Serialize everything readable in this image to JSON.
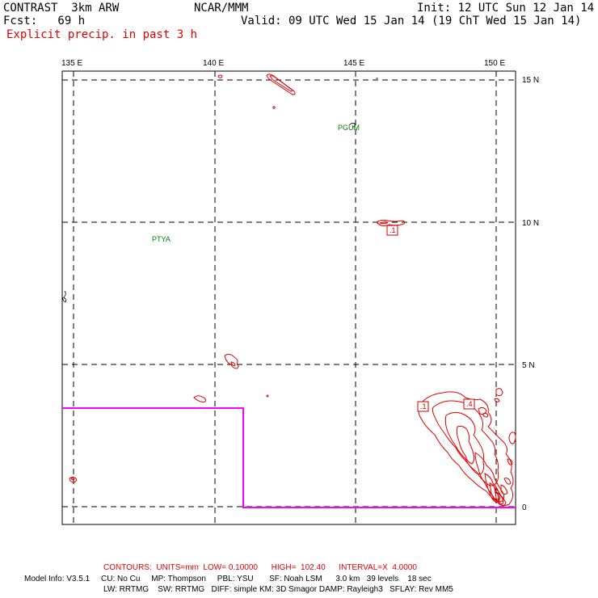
{
  "header": {
    "model": "CONTRAST  3km ARW",
    "org": "NCAR/MMM",
    "init": "Init: 12 UTC Sun 12 Jan 14",
    "fcst": "Fcst:   69 h",
    "valid": "Valid: 09 UTC Wed 15 Jan 14 (19 ChT Wed 15 Jan 14)",
    "field": "Explicit precip. in past 3 h"
  },
  "axes": {
    "lon_labels": [
      "135 E",
      "140 E",
      "145 E",
      "150 E"
    ],
    "lat_labels": [
      "15 N",
      "10 N",
      "5 N",
      "0"
    ]
  },
  "stations": [
    "PGUM",
    "PTYA"
  ],
  "contour_labels": [
    ".1",
    ".1",
    ".4"
  ],
  "footer": {
    "contours": "CONTOURS:  UNITS=mm  LOW= 0.10000      HIGH=  102.40      INTERVAL=X  4.0000",
    "model_info_1": "Model Info: V3.5.1     CU: No Cu     MP: Thompson     PBL: YSU       SF: Noah LSM      3.0 km   39 levels    18 sec",
    "model_info_2": "LW: RRTMG    SW: RRTMG   DIFF: simple KM: 3D Smagor DAMP: Rayleigh3   SFLAY: Rev MM5"
  },
  "colors": {
    "contour": "#e00000",
    "box": "#ff00ff",
    "station": "#008000",
    "grid": "#000000"
  }
}
